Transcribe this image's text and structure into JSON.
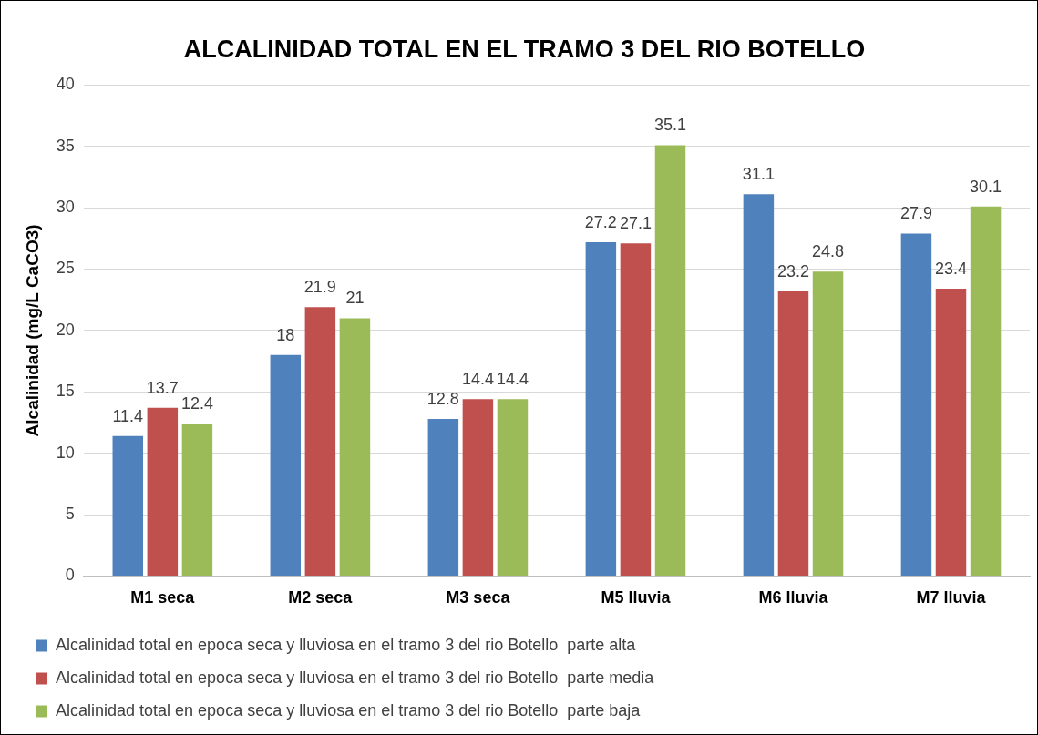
{
  "chart_data": {
    "type": "bar",
    "title": "ALCALINIDAD TOTAL EN EL TRAMO 3 DEL RIO BOTELLO",
    "ylabel": "Alcalinidad (mg/L CaCO3)",
    "categories": [
      "M1 seca",
      "M2 seca",
      "M3 seca",
      "M5 lluvia",
      "M6 lluvia",
      "M7 lluvia"
    ],
    "series": [
      {
        "name": "Alcalinidad total en epoca seca y lluviosa en el tramo 3 del rio Botello  parte alta",
        "color": "#4f81bd",
        "values": [
          11.4,
          18,
          12.8,
          27.2,
          31.1,
          27.9
        ]
      },
      {
        "name": "Alcalinidad total en epoca seca y lluviosa en el tramo 3 del rio Botello  parte media",
        "color": "#c0504d",
        "values": [
          13.7,
          21.9,
          14.4,
          27.1,
          23.2,
          23.4
        ]
      },
      {
        "name": "Alcalinidad total en epoca seca y lluviosa en el tramo 3 del rio Botello  parte baja",
        "color": "#9bbb59",
        "values": [
          12.4,
          21,
          14.4,
          35.1,
          24.8,
          30.1
        ]
      }
    ],
    "ylim": [
      0,
      40
    ],
    "yticks": [
      0,
      5,
      10,
      15,
      20,
      25,
      30,
      35,
      40
    ],
    "grid": "y",
    "legend": "bottom",
    "data_labels": true
  }
}
